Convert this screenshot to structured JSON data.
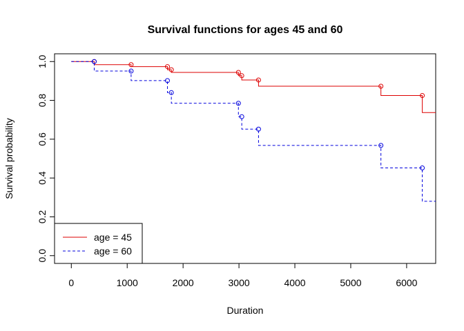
{
  "chart_data": {
    "type": "line",
    "title": "Survival functions for ages 45 and 60",
    "xlabel": "Duration",
    "ylabel": "Survival probability",
    "xlim": [
      -300,
      6520
    ],
    "ylim": [
      -0.04,
      1.04
    ],
    "xticks": [
      0,
      1000,
      2000,
      3000,
      4000,
      5000,
      6000
    ],
    "yticks": [
      0.0,
      0.2,
      0.4,
      0.6,
      0.8,
      1.0
    ],
    "xtick_labels": [
      "0",
      "1000",
      "2000",
      "3000",
      "4000",
      "5000",
      "6000"
    ],
    "ytick_labels": [
      "0.0",
      "0.2",
      "0.4",
      "0.6",
      "0.8",
      "1.0"
    ],
    "grid": false,
    "legend_position": "bottom-left",
    "x_end": 6520,
    "series": [
      {
        "name": "age = 45",
        "color": "#dd0000",
        "line_style": "solid",
        "steps": [
          {
            "x": 410,
            "y": 0.984
          },
          {
            "x": 1070,
            "y": 0.974
          },
          {
            "x": 1720,
            "y": 0.958
          },
          {
            "x": 1790,
            "y": 0.944
          },
          {
            "x": 2990,
            "y": 0.927
          },
          {
            "x": 3050,
            "y": 0.905
          },
          {
            "x": 3350,
            "y": 0.873
          },
          {
            "x": 5540,
            "y": 0.825
          },
          {
            "x": 6280,
            "y": 0.737
          }
        ]
      },
      {
        "name": "age = 60",
        "color": "#0000dd",
        "line_style": "dashed",
        "steps": [
          {
            "x": 410,
            "y": 0.951
          },
          {
            "x": 1070,
            "y": 0.902
          },
          {
            "x": 1720,
            "y": 0.84
          },
          {
            "x": 1790,
            "y": 0.785
          },
          {
            "x": 2990,
            "y": 0.716
          },
          {
            "x": 3050,
            "y": 0.652
          },
          {
            "x": 3350,
            "y": 0.568
          },
          {
            "x": 5540,
            "y": 0.452
          },
          {
            "x": 6280,
            "y": 0.28
          }
        ]
      }
    ]
  }
}
